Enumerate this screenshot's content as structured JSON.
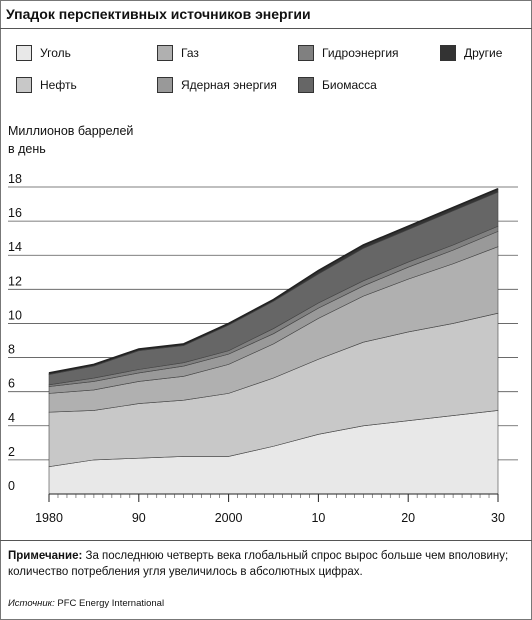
{
  "title": "Упадок перспективных источников энергии",
  "ylabel_line1": "Миллионов баррелей",
  "ylabel_line2": "в день",
  "note_label": "Примечание:",
  "note_text": " За последнюю четверть века глобальный спрос вырос больше чем вполовину; количество потребления угля увеличилось в абсолютных цифрах.",
  "source_label": "Источник:",
  "source_text": " PFC Energy International",
  "chart_data": {
    "type": "area",
    "stacked": true,
    "x": [
      1980,
      1985,
      1990,
      1995,
      2000,
      2005,
      2010,
      2015,
      2020,
      2025,
      2030
    ],
    "x_tick_values": [
      1980,
      1990,
      2000,
      2010,
      2020,
      2030
    ],
    "x_tick_labels": [
      "1980",
      "90",
      "2000",
      "10",
      "20",
      "30"
    ],
    "y_ticks": [
      0,
      2,
      4,
      6,
      8,
      10,
      12,
      14,
      16,
      18
    ],
    "ylim": [
      0,
      18
    ],
    "xlim": [
      1980,
      2030
    ],
    "grid": "horizontal",
    "series": [
      {
        "name": "Уголь",
        "color": "#e8e8e8",
        "values": [
          1.6,
          2.0,
          2.1,
          2.2,
          2.2,
          2.8,
          3.5,
          4.0,
          4.3,
          4.6,
          4.9
        ]
      },
      {
        "name": "Нефть",
        "color": "#c8c8c8",
        "values": [
          3.2,
          2.9,
          3.2,
          3.3,
          3.7,
          4.0,
          4.4,
          4.9,
          5.2,
          5.4,
          5.7
        ]
      },
      {
        "name": "Газ",
        "color": "#b0b0b0",
        "values": [
          1.1,
          1.2,
          1.3,
          1.4,
          1.7,
          2.0,
          2.4,
          2.7,
          3.1,
          3.5,
          3.9
        ]
      },
      {
        "name": "Ядерная энергия",
        "color": "#999999",
        "values": [
          0.4,
          0.5,
          0.5,
          0.6,
          0.6,
          0.6,
          0.6,
          0.6,
          0.7,
          0.8,
          0.9
        ]
      },
      {
        "name": "Гидроэнергия",
        "color": "#808080",
        "values": [
          0.1,
          0.2,
          0.2,
          0.2,
          0.2,
          0.3,
          0.3,
          0.3,
          0.3,
          0.3,
          0.3
        ]
      },
      {
        "name": "Биомасса",
        "color": "#666666",
        "values": [
          0.6,
          0.7,
          1.1,
          1.0,
          1.5,
          1.6,
          1.7,
          1.9,
          1.9,
          2.0,
          2.0
        ]
      },
      {
        "name": "Другие",
        "color": "#333333",
        "values": [
          0.1,
          0.1,
          0.1,
          0.1,
          0.1,
          0.1,
          0.2,
          0.2,
          0.2,
          0.2,
          0.2
        ]
      }
    ]
  },
  "legend": [
    {
      "label": "Уголь",
      "color": "#e8e8e8"
    },
    {
      "label": "Газ",
      "color": "#b0b0b0"
    },
    {
      "label": "Гидроэнергия",
      "color": "#808080"
    },
    {
      "label": "Другие",
      "color": "#333333"
    },
    {
      "label": "Нефть",
      "color": "#c8c8c8"
    },
    {
      "label": "Ядерная энергия",
      "color": "#999999"
    },
    {
      "label": "Биомасса",
      "color": "#666666"
    }
  ]
}
